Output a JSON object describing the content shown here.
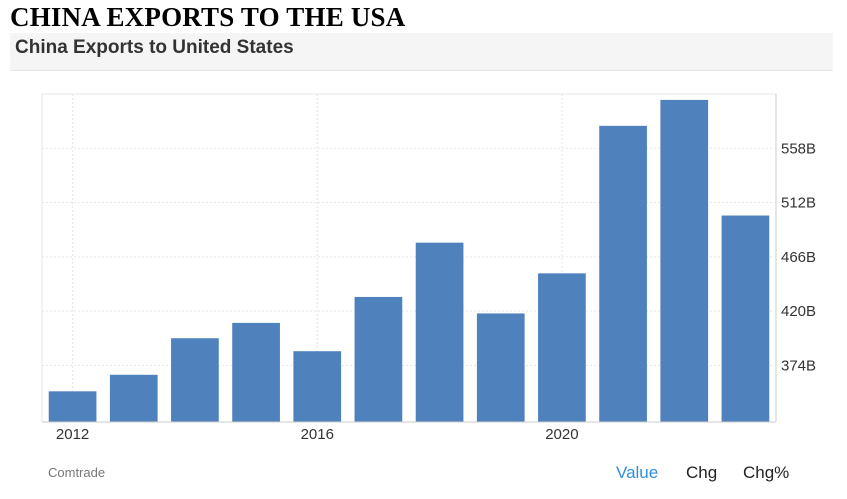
{
  "heading": "CHINA EXPORTS TO THE USA",
  "panel": {
    "title": "China Exports to United States",
    "source": "Comtrade",
    "tabs": [
      {
        "label": "Value",
        "active": true
      },
      {
        "label": "Chg",
        "active": false
      },
      {
        "label": "Chg%",
        "active": false
      }
    ]
  },
  "colors": {
    "bar": "#4f81bd",
    "active_tab": "#2f8fe0",
    "grid": "#e6e6e6"
  },
  "chart_data": {
    "type": "bar",
    "categories": [
      "2012",
      "2013",
      "2014",
      "2015",
      "2016",
      "2017",
      "2018",
      "2019",
      "2020",
      "2021",
      "2022",
      "2023"
    ],
    "x_tick_labels": [
      "2012",
      "2016",
      "2020"
    ],
    "values": [
      352,
      366,
      397,
      410,
      386,
      432,
      478,
      418,
      452,
      577,
      599,
      501
    ],
    "y_tick_labels": [
      "374B",
      "420B",
      "466B",
      "512B",
      "558B"
    ],
    "y_ticks": [
      374,
      420,
      466,
      512,
      558
    ],
    "ylim": [
      326,
      604
    ],
    "axis_position": "right",
    "grid": true
  }
}
